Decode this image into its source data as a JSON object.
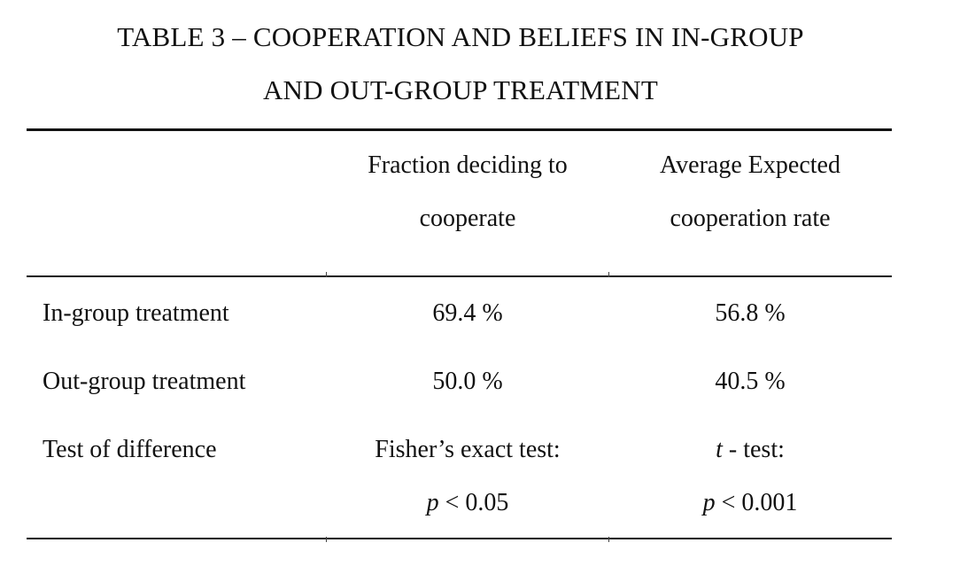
{
  "title": {
    "line1": "TABLE 3 – COOPERATION AND BELIEFS IN IN-GROUP",
    "line2": "AND OUT-GROUP TREATMENT"
  },
  "header": {
    "col1_line1": "Fraction deciding to",
    "col1_line2": "cooperate",
    "col2_line1": "Average Expected",
    "col2_line2": "cooperation rate"
  },
  "rows": [
    {
      "label": "In-group treatment",
      "col1": "69.4 %",
      "col2": "56.8 %"
    },
    {
      "label": "Out-group treatment",
      "col1": "50.0 %",
      "col2": "40.5 %"
    }
  ],
  "test_row": {
    "label": "Test of difference",
    "col1_line1": "Fisher’s exact test:",
    "col1_p_symbol": "p",
    "col1_p_value": " < 0.05",
    "col2_t_symbol": "t",
    "col2_t_text": " - test:",
    "col2_p_symbol": "p",
    "col2_p_value": " < 0.001"
  }
}
